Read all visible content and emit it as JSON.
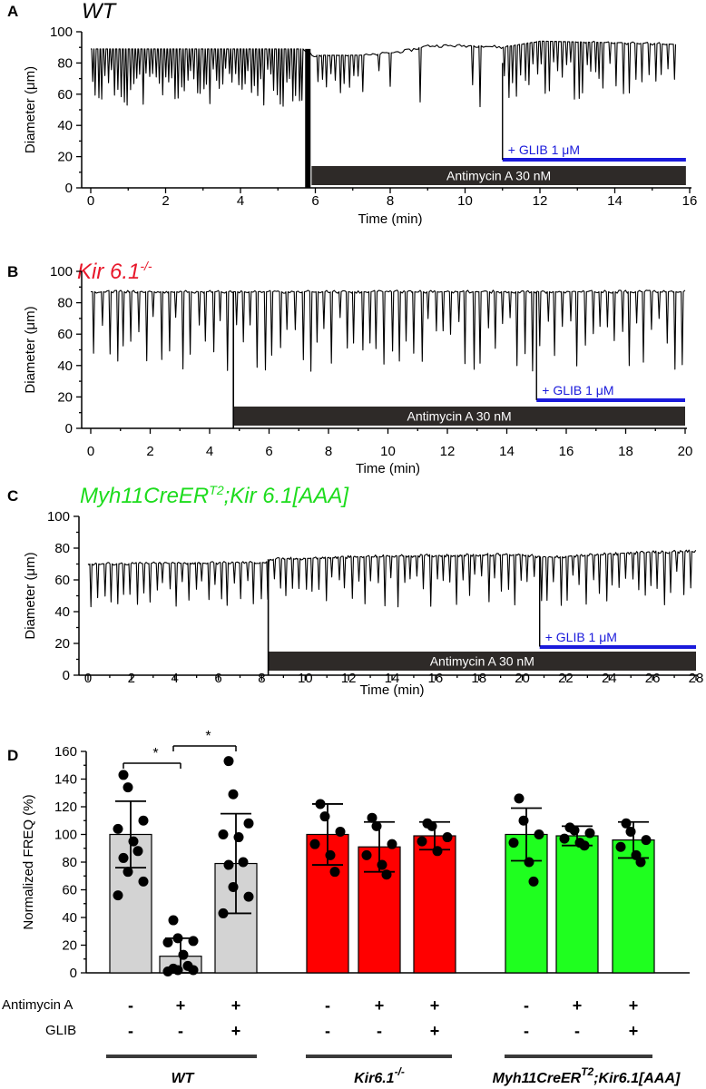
{
  "chart_data": [
    {
      "type": "line",
      "panel": "A",
      "title": "WT",
      "title_color": "#000000",
      "xlabel": "Time (min)",
      "ylabel": "Diameter (μm)",
      "xlim": [
        0,
        16
      ],
      "ylim": [
        0,
        100
      ],
      "xticks": [
        0,
        2,
        4,
        6,
        8,
        10,
        12,
        14,
        16
      ],
      "yticks": [
        0,
        20,
        40,
        60,
        80,
        100
      ],
      "treatment_bar": {
        "label": "Antimycin A 30 nM",
        "start": 5.9,
        "end": 15.9,
        "color": "#2e2a28"
      },
      "glib_line": {
        "label": "+ GLIB 1 μM",
        "start": 11.0,
        "end": 15.9,
        "color": "#1a1adb"
      },
      "trace": {
        "baseline": [
          [
            0,
            89
          ],
          [
            5.7,
            89
          ],
          [
            5.9,
            85
          ],
          [
            7.5,
            85
          ],
          [
            8.5,
            88
          ],
          [
            9.0,
            91
          ],
          [
            10.5,
            91
          ],
          [
            11.0,
            90
          ],
          [
            12.0,
            94
          ],
          [
            14.0,
            93
          ],
          [
            15.6,
            92
          ]
        ],
        "constriction_windows": [
          [
            0,
            5.7,
            0.085,
            52
          ],
          [
            6.0,
            7.3,
            0.12,
            58
          ],
          [
            11.0,
            13.8,
            0.11,
            56
          ],
          [
            13.8,
            15.6,
            0.17,
            58
          ]
        ],
        "isolated_dips": [
          [
            7.7,
            75
          ],
          [
            8.0,
            65
          ],
          [
            8.8,
            55
          ],
          [
            10.2,
            66
          ],
          [
            10.4,
            52
          ]
        ],
        "event_line": [
          5.8,
          0,
          89
        ],
        "glib_step": [
          11.0,
          18,
          80
        ]
      }
    },
    {
      "type": "line",
      "panel": "B",
      "title": "Kir 6.1",
      "title_sup": "-/-",
      "title_color": "#e8182b",
      "xlabel": "Time (min)",
      "ylabel": "Diameter (μm)",
      "xlim": [
        0,
        20
      ],
      "ylim": [
        0,
        100
      ],
      "xticks": [
        0,
        2,
        4,
        6,
        8,
        10,
        12,
        14,
        16,
        18,
        20
      ],
      "yticks": [
        0,
        20,
        40,
        60,
        80,
        100
      ],
      "treatment_bar": {
        "label": "Antimycin A 30 nM",
        "start": 4.8,
        "end": 20,
        "color": "#2e2a28"
      },
      "glib_line": {
        "label": "+ GLIB 1 μM",
        "start": 15.0,
        "end": 20,
        "color": "#1a1adb"
      },
      "trace": {
        "baseline": [
          [
            0,
            87
          ],
          [
            20,
            87
          ]
        ],
        "constriction_windows": [
          [
            0,
            20,
            0.25,
            36
          ]
        ],
        "isolated_dips": [],
        "event_line": [
          4.8,
          0,
          87
        ],
        "glib_step": [
          15.0,
          18,
          87
        ]
      }
    },
    {
      "type": "line",
      "panel": "C",
      "title": "Myh11CreER",
      "title_sup": "T2",
      "title_suffix": ";Kir 6.1[AAA]",
      "title_color": "#1ddc1d",
      "xlabel": "Time (min)",
      "ylabel": "Diameter (μm)",
      "xlim": [
        0,
        28
      ],
      "ylim": [
        0,
        100
      ],
      "xticks": [
        0,
        2,
        4,
        6,
        8,
        10,
        12,
        14,
        16,
        18,
        20,
        22,
        24,
        26,
        28
      ],
      "yticks": [
        0,
        20,
        40,
        60,
        80,
        100
      ],
      "treatment_bar": {
        "label": "Antimycin A 30 nM",
        "start": 8.3,
        "end": 28,
        "color": "#2e2a28"
      },
      "glib_line": {
        "label": "+ GLIB 1 μM",
        "start": 20.8,
        "end": 28,
        "color": "#1a1adb"
      },
      "trace": {
        "baseline": [
          [
            0,
            70
          ],
          [
            8.2,
            71
          ],
          [
            8.5,
            73
          ],
          [
            14,
            75
          ],
          [
            20,
            76
          ],
          [
            21,
            74
          ],
          [
            25,
            77
          ],
          [
            28,
            78
          ]
        ],
        "constriction_windows": [
          [
            0,
            28,
            0.3,
            43
          ]
        ],
        "isolated_dips": [],
        "event_line": [
          8.3,
          0,
          73
        ],
        "glib_step": [
          20.8,
          18,
          75
        ]
      }
    },
    {
      "type": "bar",
      "panel": "D",
      "ylabel": "Normalized FREQ (%)",
      "ylim": [
        0,
        160
      ],
      "yticks": [
        0,
        20,
        40,
        60,
        80,
        100,
        120,
        140,
        160
      ],
      "row_labels": [
        "Antimycin A",
        "GLIB"
      ],
      "groups": [
        {
          "label": "WT",
          "sup": "",
          "suffix": "",
          "color": "#d3d3d3",
          "bars": [
            {
              "mean": 100,
              "sd": 24,
              "antimycin": "-",
              "glib": "-",
              "points": [
                143,
                134,
                110,
                104,
                95,
                88,
                83,
                73,
                66,
                56
              ]
            },
            {
              "mean": 12,
              "sd": 13,
              "antimycin": "+",
              "glib": "-",
              "points": [
                38,
                25,
                23,
                22,
                13,
                5,
                3,
                2,
                2,
                1
              ]
            },
            {
              "mean": 79,
              "sd": 36,
              "antimycin": "+",
              "glib": "+",
              "points": [
                153,
                129,
                108,
                100,
                98,
                80,
                78,
                62,
                55,
                43
              ]
            }
          ]
        },
        {
          "label": "Kir6.1",
          "sup": "-/-",
          "suffix": "",
          "color": "#ff0000",
          "bars": [
            {
              "mean": 100,
              "sd": 22,
              "antimycin": "-",
              "glib": "-",
              "points": [
                122,
                113,
                102,
                93,
                85,
                73
              ]
            },
            {
              "mean": 91,
              "sd": 18,
              "antimycin": "+",
              "glib": "-",
              "points": [
                112,
                106,
                93,
                85,
                78,
                71
              ]
            },
            {
              "mean": 99,
              "sd": 10,
              "antimycin": "+",
              "glib": "+",
              "points": [
                108,
                106,
                98,
                95,
                88
              ]
            }
          ]
        },
        {
          "label": "Myh11CreER",
          "sup": "T2",
          "suffix": ";Kir6.1[AAA]",
          "color": "#1fff1f",
          "bars": [
            {
              "mean": 100,
              "sd": 19,
              "antimycin": "-",
              "glib": "-",
              "points": [
                126,
                110,
                100,
                94,
                80,
                66
              ]
            },
            {
              "mean": 99,
              "sd": 7,
              "antimycin": "+",
              "glib": "-",
              "points": [
                105,
                103,
                101,
                97,
                94,
                92
              ]
            },
            {
              "mean": 96,
              "sd": 13,
              "antimycin": "+",
              "glib": "+",
              "points": [
                108,
                102,
                96,
                91,
                85,
                80
              ]
            }
          ]
        }
      ],
      "significance": [
        {
          "from": 0,
          "to": 1,
          "label": "*"
        },
        {
          "from": 1,
          "to": 2,
          "label": "*"
        }
      ]
    }
  ]
}
